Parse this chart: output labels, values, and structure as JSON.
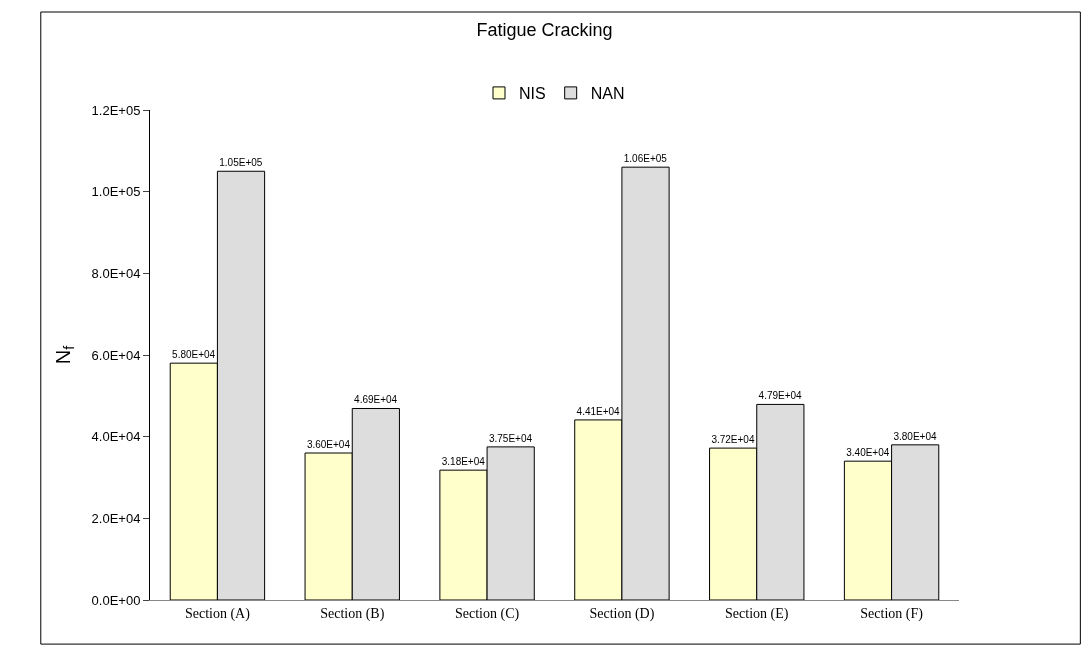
{
  "chart_data": {
    "type": "bar",
    "title": "Fatigue Cracking",
    "ylabel": "N$_{f}$",
    "categories": [
      "Section (A)",
      "Section (B)",
      "Section (C)",
      "Section (D)",
      "Section (E)",
      "Section (F)"
    ],
    "series": [
      {
        "name": "NIS",
        "color": "#ffffcc",
        "values": [
          58000,
          36000,
          31800,
          44100,
          37200,
          34000
        ],
        "value_labels": [
          "5.80E+04",
          "3.60E+04",
          "3.18E+04",
          "4.41E+04",
          "3.72E+04",
          "3.40E+04"
        ]
      },
      {
        "name": "NAN",
        "color": "#dddddd",
        "values": [
          105000,
          46900,
          37500,
          106000,
          47900,
          38000
        ],
        "value_labels": [
          "1.05E+05",
          "4.69E+04",
          "3.75E+04",
          "1.06E+05",
          "4.79E+04",
          "3.80E+04"
        ]
      }
    ],
    "ylim": [
      0,
      120000
    ],
    "yticks": [
      {
        "value": 0,
        "label": "0.0E+00"
      },
      {
        "value": 20000,
        "label": "2.0E+04"
      },
      {
        "value": 40000,
        "label": "4.0E+04"
      },
      {
        "value": 60000,
        "label": "6.0E+04"
      },
      {
        "value": 80000,
        "label": "8.0E+04"
      },
      {
        "value": 100000,
        "label": "1.0E+05"
      },
      {
        "value": 120000,
        "label": "1.2E+05"
      }
    ],
    "legend": "top"
  }
}
